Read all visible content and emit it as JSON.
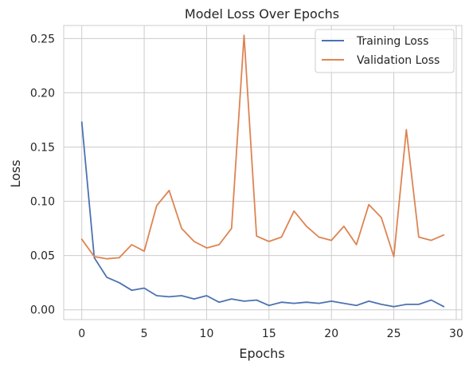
{
  "chart_data": {
    "type": "line",
    "title": "Model Loss Over Epochs",
    "xlabel": "Epochs",
    "ylabel": "Loss",
    "xlim": [
      -1.45,
      30.45
    ],
    "ylim": [
      -0.009,
      0.262
    ],
    "xticks": [
      0,
      5,
      10,
      15,
      20,
      25,
      30
    ],
    "xtick_labels": [
      "0",
      "5",
      "10",
      "15",
      "20",
      "25",
      "30"
    ],
    "yticks": [
      0.0,
      0.05,
      0.1,
      0.15,
      0.2,
      0.25
    ],
    "ytick_labels": [
      "0.00",
      "0.05",
      "0.10",
      "0.15",
      "0.20",
      "0.25"
    ],
    "grid": true,
    "legend_position": "top-right",
    "x": [
      0,
      1,
      2,
      3,
      4,
      5,
      6,
      7,
      8,
      9,
      10,
      11,
      12,
      13,
      14,
      15,
      16,
      17,
      18,
      19,
      20,
      21,
      22,
      23,
      24,
      25,
      26,
      27,
      28,
      29
    ],
    "series": [
      {
        "name": "Training Loss",
        "color": "#4c72b0",
        "values": [
          0.173,
          0.048,
          0.03,
          0.025,
          0.018,
          0.02,
          0.013,
          0.012,
          0.013,
          0.01,
          0.013,
          0.007,
          0.01,
          0.008,
          0.009,
          0.004,
          0.007,
          0.006,
          0.007,
          0.006,
          0.008,
          0.006,
          0.004,
          0.008,
          0.005,
          0.003,
          0.005,
          0.005,
          0.009,
          0.003
        ]
      },
      {
        "name": "Validation Loss",
        "color": "#dd8452",
        "values": [
          0.065,
          0.049,
          0.047,
          0.048,
          0.06,
          0.054,
          0.096,
          0.11,
          0.075,
          0.063,
          0.057,
          0.06,
          0.075,
          0.253,
          0.068,
          0.063,
          0.067,
          0.091,
          0.077,
          0.067,
          0.064,
          0.077,
          0.06,
          0.097,
          0.085,
          0.049,
          0.166,
          0.067,
          0.064,
          0.069
        ]
      }
    ]
  }
}
